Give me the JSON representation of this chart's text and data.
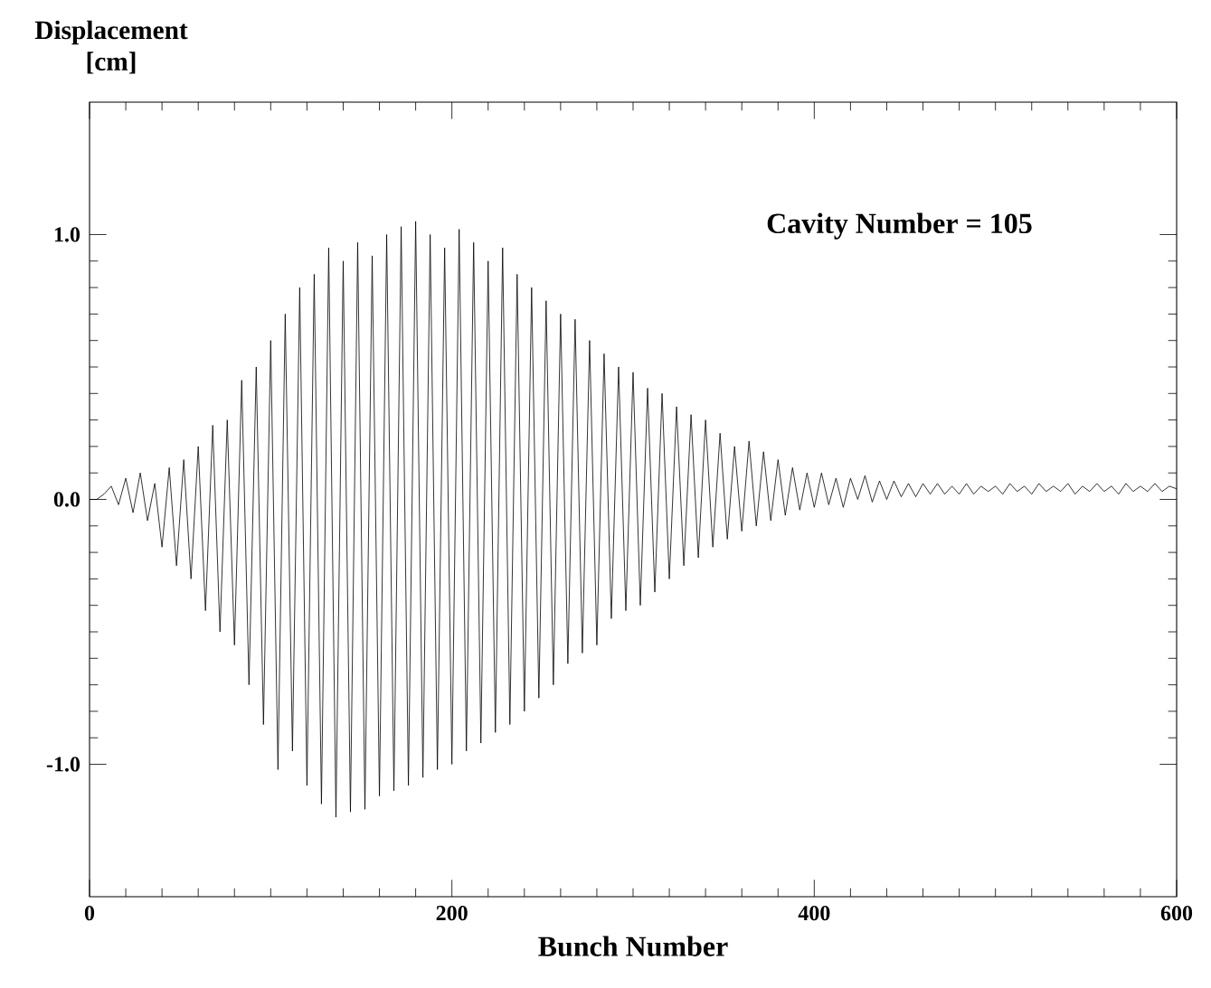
{
  "chart_data": {
    "type": "line",
    "xlabel": "Bunch Number",
    "ylabel": "Displacement [cm]",
    "annotations": [
      "Cavity Number = 105"
    ],
    "xlim": [
      0,
      600
    ],
    "ylim": [
      -1.5,
      1.5
    ],
    "xticks": [
      0,
      200,
      400,
      600
    ],
    "yticks": [
      {
        "value": -1.0,
        "label": "-1.0"
      },
      {
        "value": 0,
        "label": "0.0"
      },
      {
        "value": 1.0,
        "label": "1.0"
      }
    ],
    "grid": false,
    "series": [
      {
        "color": "#000000",
        "x": [
          0,
          4,
          8,
          12,
          16,
          20,
          24,
          28,
          32,
          36,
          40,
          44,
          48,
          52,
          56,
          60,
          64,
          68,
          72,
          76,
          80,
          84,
          88,
          92,
          96,
          100,
          104,
          108,
          112,
          116,
          120,
          124,
          128,
          132,
          136,
          140,
          144,
          148,
          152,
          156,
          160,
          164,
          168,
          172,
          176,
          180,
          184,
          188,
          192,
          196,
          200,
          204,
          208,
          212,
          216,
          220,
          224,
          228,
          232,
          236,
          240,
          244,
          248,
          252,
          256,
          260,
          264,
          268,
          272,
          276,
          280,
          284,
          288,
          292,
          296,
          300,
          304,
          308,
          312,
          316,
          320,
          324,
          328,
          332,
          336,
          340,
          344,
          348,
          352,
          356,
          360,
          364,
          368,
          372,
          376,
          380,
          384,
          388,
          392,
          396,
          400,
          404,
          408,
          412,
          416,
          420,
          424,
          428,
          432,
          436,
          440,
          444,
          448,
          452,
          456,
          460,
          464,
          468,
          472,
          476,
          480,
          484,
          488,
          492,
          496,
          500,
          504,
          508,
          512,
          516,
          520,
          524,
          528,
          532,
          536,
          540,
          544,
          548,
          552,
          556,
          560,
          564,
          568,
          572,
          576,
          580,
          584,
          588,
          592,
          596,
          600
        ],
        "values": [
          0,
          0,
          0.02,
          0.05,
          -0.02,
          0.08,
          -0.05,
          0.1,
          -0.08,
          0.06,
          -0.18,
          0.12,
          -0.25,
          0.15,
          -0.3,
          0.2,
          -0.42,
          0.28,
          -0.5,
          0.3,
          -0.55,
          0.45,
          -0.7,
          0.5,
          -0.85,
          0.6,
          -1.02,
          0.7,
          -0.95,
          0.8,
          -1.08,
          0.85,
          -1.15,
          0.95,
          -1.2,
          0.9,
          -1.18,
          0.97,
          -1.17,
          0.92,
          -1.12,
          1.0,
          -1.1,
          1.03,
          -1.08,
          1.05,
          -1.05,
          1.0,
          -1.02,
          0.95,
          -1.0,
          1.02,
          -0.95,
          0.97,
          -0.92,
          0.9,
          -0.88,
          0.95,
          -0.85,
          0.85,
          -0.8,
          0.8,
          -0.75,
          0.75,
          -0.7,
          0.7,
          -0.62,
          0.68,
          -0.58,
          0.6,
          -0.55,
          0.55,
          -0.45,
          0.5,
          -0.42,
          0.48,
          -0.4,
          0.42,
          -0.35,
          0.4,
          -0.3,
          0.35,
          -0.25,
          0.32,
          -0.22,
          0.3,
          -0.18,
          0.25,
          -0.15,
          0.2,
          -0.12,
          0.22,
          -0.1,
          0.18,
          -0.08,
          0.15,
          -0.06,
          0.12,
          -0.04,
          0.1,
          -0.03,
          0.1,
          -0.02,
          0.08,
          -0.03,
          0.08,
          0.0,
          0.09,
          -0.01,
          0.07,
          0.0,
          0.07,
          0.01,
          0.06,
          0.01,
          0.06,
          0.02,
          0.06,
          0.02,
          0.05,
          0.02,
          0.06,
          0.02,
          0.05,
          0.03,
          0.05,
          0.02,
          0.06,
          0.03,
          0.05,
          0.02,
          0.06,
          0.03,
          0.05,
          0.03,
          0.06,
          0.02,
          0.05,
          0.03,
          0.06,
          0.03,
          0.05,
          0.02,
          0.06,
          0.03,
          0.05,
          0.03,
          0.06,
          0.03,
          0.05,
          0.04
        ]
      }
    ]
  }
}
